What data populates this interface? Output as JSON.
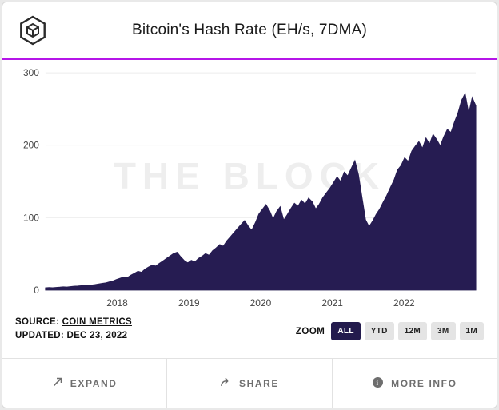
{
  "header": {
    "title": "Bitcoin's Hash Rate (EH/s, 7DMA)"
  },
  "watermark": "THE BLOCK",
  "meta": {
    "source_label": "SOURCE:",
    "source_value": "COIN METRICS",
    "updated_label": "UPDATED:",
    "updated_value": "DEC 23, 2022"
  },
  "zoom": {
    "label": "ZOOM",
    "options": [
      {
        "label": "ALL",
        "active": true
      },
      {
        "label": "YTD",
        "active": false
      },
      {
        "label": "12M",
        "active": false
      },
      {
        "label": "3M",
        "active": false
      },
      {
        "label": "1M",
        "active": false
      }
    ]
  },
  "footer": {
    "buttons": [
      {
        "label": "EXPAND",
        "icon": "expand-icon"
      },
      {
        "label": "SHARE",
        "icon": "share-icon"
      },
      {
        "label": "MORE INFO",
        "icon": "info-icon"
      }
    ]
  },
  "colors": {
    "area": "#261c52",
    "divider": "#b515e8",
    "active_zoom_bg": "#231b4d",
    "grid": "#ececec",
    "baseline": "#bbbbbb",
    "tick_text": "#444444"
  },
  "chart_data": {
    "type": "area",
    "title": "Bitcoin's Hash Rate (EH/s, 7DMA)",
    "ylabel": "EH/s",
    "ylim": [
      0,
      300
    ],
    "yticks": [
      0,
      100,
      200,
      300
    ],
    "x_domain": [
      2017.0,
      2023.0
    ],
    "xticks": [
      2018,
      2019,
      2020,
      2021,
      2022
    ],
    "legend": "none",
    "grid": "horizontal",
    "values": [
      3.0,
      3.3,
      3.1,
      3.6,
      3.9,
      4.3,
      4.1,
      4.7,
      5.1,
      5.5,
      5.9,
      6.4,
      6.1,
      6.9,
      7.6,
      8.3,
      9.1,
      9.9,
      11.2,
      12.6,
      14.5,
      16.2,
      18.0,
      17.1,
      20.4,
      23.0,
      25.8,
      24.6,
      28.9,
      31.8,
      34.2,
      33.0,
      36.8,
      40.1,
      43.4,
      47.0,
      50.3,
      52.1,
      46.0,
      40.8,
      37.5,
      41.0,
      38.8,
      43.6,
      46.4,
      50.2,
      48.0,
      54.3,
      58.1,
      62.8,
      60.5,
      67.9,
      73.6,
      79.2,
      85.0,
      90.4,
      95.8,
      88.2,
      82.5,
      92.7,
      104.8,
      111.5,
      117.9,
      109.6,
      97.8,
      108.2,
      114.9,
      96.4,
      104.1,
      112.3,
      119.8,
      115.6,
      123.9,
      118.7,
      126.8,
      121.9,
      111.8,
      118.4,
      127.6,
      134.2,
      140.5,
      148.3,
      156.1,
      149.8,
      162.7,
      157.4,
      168.2,
      178.5,
      159.6,
      127.9,
      96.8,
      87.5,
      95.2,
      104.4,
      111.9,
      121.7,
      130.8,
      141.6,
      151.9,
      165.8,
      171.9,
      182.6,
      177.4,
      191.8,
      198.6,
      204.9,
      195.7,
      209.8,
      201.6,
      214.9,
      207.8,
      198.9,
      211.6,
      221.8,
      217.5,
      231.9,
      244.6,
      261.8,
      271.5,
      243.8,
      265.9,
      254.6
    ]
  }
}
